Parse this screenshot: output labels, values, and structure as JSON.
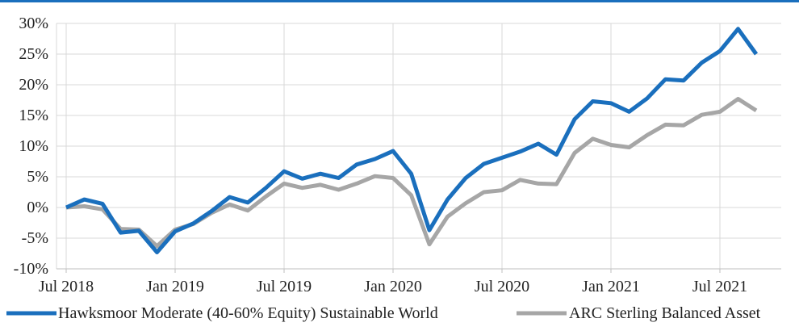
{
  "chart_data": {
    "type": "line",
    "title": "",
    "xlabel": "",
    "ylabel": "",
    "ylim": [
      -10,
      30
    ],
    "yticks": [
      -10,
      -5,
      0,
      5,
      10,
      15,
      20,
      25,
      30
    ],
    "ytick_labels": [
      "-10%",
      "-5%",
      "0%",
      "5%",
      "10%",
      "15%",
      "20%",
      "25%",
      "30%"
    ],
    "xrange": [
      "2018-07",
      "2021-11"
    ],
    "xticks": [
      {
        "date": "2018-07",
        "label": "Jul 2018"
      },
      {
        "date": "2019-01",
        "label": "Jan 2019"
      },
      {
        "date": "2019-07",
        "label": "Jul 2019"
      },
      {
        "date": "2020-01",
        "label": "Jan 2020"
      },
      {
        "date": "2020-07",
        "label": "Jul 2020"
      },
      {
        "date": "2021-01",
        "label": "Jan 2021"
      },
      {
        "date": "2021-07",
        "label": "Jul 2021"
      }
    ],
    "grid": true,
    "legend_position": "bottom",
    "x": [
      "2018-07",
      "2018-08",
      "2018-09",
      "2018-10",
      "2018-11",
      "2018-12",
      "2019-01",
      "2019-02",
      "2019-03",
      "2019-04",
      "2019-05",
      "2019-06",
      "2019-07",
      "2019-08",
      "2019-09",
      "2019-10",
      "2019-11",
      "2019-12",
      "2020-01",
      "2020-02",
      "2020-03",
      "2020-04",
      "2020-05",
      "2020-06",
      "2020-07",
      "2020-08",
      "2020-09",
      "2020-10",
      "2020-11",
      "2020-12",
      "2021-01",
      "2021-02",
      "2021-03",
      "2021-04",
      "2021-05",
      "2021-06",
      "2021-07",
      "2021-08",
      "2021-09"
    ],
    "series": [
      {
        "name": "Hawksmoor Moderate (40-60% Equity) Sustainable World",
        "color": "#1a6fbd",
        "values": [
          0.0,
          1.3,
          0.6,
          -4.1,
          -3.8,
          -7.3,
          -3.9,
          -2.6,
          -0.6,
          1.7,
          0.8,
          3.2,
          5.9,
          4.7,
          5.5,
          4.8,
          7.0,
          7.9,
          9.2,
          5.5,
          -3.7,
          1.3,
          4.8,
          7.1,
          8.1,
          9.1,
          10.4,
          8.6,
          14.4,
          17.3,
          17.0,
          15.6,
          17.8,
          20.9,
          20.7,
          23.6,
          25.5,
          29.1,
          25.0
        ]
      },
      {
        "name": "ARC Sterling Balanced Asset",
        "color": "#a6a6a6",
        "values": [
          0.0,
          0.2,
          -0.3,
          -3.5,
          -3.6,
          -6.3,
          -3.6,
          -2.7,
          -0.9,
          0.5,
          -0.5,
          1.8,
          3.9,
          3.2,
          3.7,
          2.9,
          3.9,
          5.1,
          4.8,
          2.0,
          -6.0,
          -1.5,
          0.7,
          2.5,
          2.8,
          4.5,
          3.9,
          3.8,
          8.9,
          11.2,
          10.2,
          9.8,
          11.8,
          13.5,
          13.4,
          15.1,
          15.6,
          17.7,
          15.8
        ]
      }
    ]
  }
}
